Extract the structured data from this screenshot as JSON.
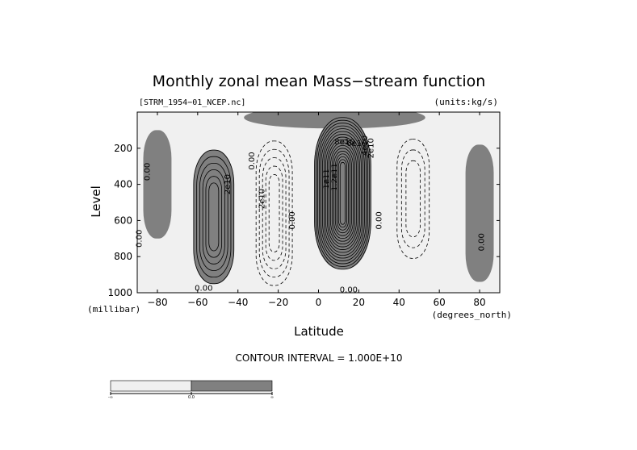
{
  "chart_data": {
    "type": "contour",
    "title": "Monthly zonal mean Mass−stream function",
    "file_label": "[STRM_1954−01_NCEP.nc]",
    "units_label": "(units:kg/s)",
    "xlabel": "Latitude",
    "x_units": "(degrees_north)",
    "ylabel": "Level",
    "y_units": "(millibar)",
    "xlim": [
      -90,
      90
    ],
    "ylim": [
      1000,
      0
    ],
    "x_ticks": [
      -80,
      -60,
      -40,
      -20,
      0,
      20,
      40,
      60,
      80
    ],
    "x_tick_labels": [
      "−80",
      "−60",
      "−40",
      "−20",
      "0",
      "20",
      "40",
      "60",
      "80"
    ],
    "y_ticks": [
      200,
      400,
      600,
      800,
      1000
    ],
    "y_tick_labels": [
      "200",
      "400",
      "600",
      "800",
      "1000"
    ],
    "contour_interval_text": "CONTOUR INTERVAL = 1.000E+10",
    "contour_interval": 10000000000.0,
    "fill_colors": {
      "negative": "#f0f0f0",
      "positive": "#808080"
    },
    "cells": [
      {
        "lat": -52,
        "lev": 580,
        "hw": 10,
        "hh": 370,
        "peak": 6
      },
      {
        "lat": -22,
        "lev": 560,
        "hw": 9,
        "hh": 400,
        "peak": -5
      },
      {
        "lat": 12,
        "lev": 450,
        "hw": 14,
        "hh": 420,
        "peak": 17
      },
      {
        "lat": 47,
        "lev": 480,
        "hw": 8,
        "hh": 330,
        "peak": -3
      }
    ],
    "positive_regions": [
      {
        "lat": -80,
        "lev": 400,
        "hw": 7,
        "hh": 300
      },
      {
        "lat": 8,
        "lev": 30,
        "hw": 45,
        "hh": 60
      },
      {
        "lat": 80,
        "lev": 560,
        "hw": 7,
        "hh": 380
      }
    ],
    "contour_labels": [
      {
        "text": "0.00",
        "lat": -85,
        "lev": 330,
        "rotate": -90
      },
      {
        "text": "0.00",
        "lat": -89,
        "lev": 700,
        "rotate": -90
      },
      {
        "text": "2e10",
        "lat": -45,
        "lev": 400,
        "rotate": -90
      },
      {
        "text": "0.00",
        "lat": -33,
        "lev": 270,
        "rotate": -90
      },
      {
        "text": "0.00",
        "lat": -57,
        "lev": 975,
        "rotate": 0
      },
      {
        "text": "2e10",
        "lat": -28,
        "lev": 480,
        "rotate": -90
      },
      {
        "text": "0.00",
        "lat": -13,
        "lev": 600,
        "rotate": -90
      },
      {
        "text": "1e11",
        "lat": 4,
        "lev": 370,
        "rotate": -90
      },
      {
        "text": "1.2e11",
        "lat": 8,
        "lev": 360,
        "rotate": -90
      },
      {
        "text": "8e10",
        "lat": 13,
        "lev": 165,
        "rotate": 0
      },
      {
        "text": "6e10",
        "lat": 19,
        "lev": 175,
        "rotate": 0
      },
      {
        "text": "4e10",
        "lat": 23,
        "lev": 185,
        "rotate": -90
      },
      {
        "text": "2e10",
        "lat": 26,
        "lev": 200,
        "rotate": -90
      },
      {
        "text": "0.00",
        "lat": 30,
        "lev": 600,
        "rotate": -90
      },
      {
        "text": "0.00",
        "lat": 81,
        "lev": 720,
        "rotate": -90
      },
      {
        "text": "0.00",
        "lat": 15,
        "lev": 985,
        "rotate": 0
      }
    ],
    "colorbar": {
      "ticks": [
        "-∞",
        "0.0",
        "∞"
      ]
    }
  }
}
